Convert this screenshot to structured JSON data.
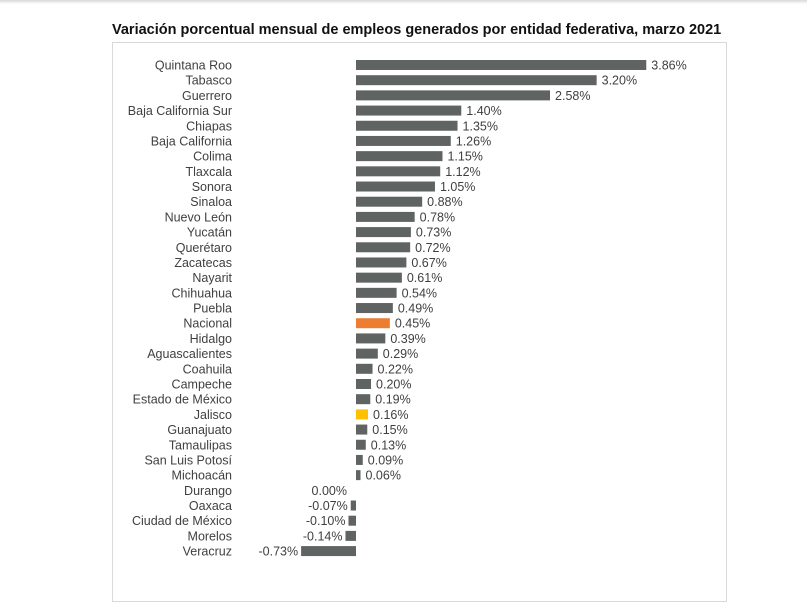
{
  "chart_data": {
    "type": "bar",
    "orientation": "horizontal",
    "title": "Variación porcentual mensual de empleos generados por entidad federativa, marzo 2021",
    "categories": [
      "Quintana Roo",
      "Tabasco",
      "Guerrero",
      "Baja California Sur",
      "Chiapas",
      "Baja California",
      "Colima",
      "Tlaxcala",
      "Sonora",
      "Sinaloa",
      "Nuevo León",
      "Yucatán",
      "Querétaro",
      "Zacatecas",
      "Nayarit",
      "Chihuahua",
      "Puebla",
      "Nacional",
      "Hidalgo",
      "Aguascalientes",
      "Coahuila",
      "Campeche",
      "Estado de México",
      "Jalisco",
      "Guanajuato",
      "Tamaulipas",
      "San Luis Potosí",
      "Michoacán",
      "Durango",
      "Oaxaca",
      "Ciudad de México",
      "Morelos",
      "Veracruz"
    ],
    "values": [
      3.86,
      3.2,
      2.58,
      1.4,
      1.35,
      1.26,
      1.15,
      1.12,
      1.05,
      0.88,
      0.78,
      0.73,
      0.72,
      0.67,
      0.61,
      0.54,
      0.49,
      0.45,
      0.39,
      0.29,
      0.22,
      0.2,
      0.19,
      0.16,
      0.15,
      0.13,
      0.09,
      0.06,
      0.0,
      -0.07,
      -0.1,
      -0.14,
      -0.73
    ],
    "labels": [
      "3.86%",
      "3.20%",
      "2.58%",
      "1.40%",
      "1.35%",
      "1.26%",
      "1.15%",
      "1.12%",
      "1.05%",
      "0.88%",
      "0.78%",
      "0.73%",
      "0.72%",
      "0.67%",
      "0.61%",
      "0.54%",
      "0.49%",
      "0.45%",
      "0.39%",
      "0.29%",
      "0.22%",
      "0.20%",
      "0.19%",
      "0.16%",
      "0.15%",
      "0.13%",
      "0.09%",
      "0.06%",
      "0.00%",
      "-0.07%",
      "-0.10%",
      "-0.14%",
      "-0.73%"
    ],
    "unit": "%",
    "grid": false,
    "legend": "none",
    "colors": {
      "default": "#5f6462",
      "highlight": {
        "Nacional": "#ed7d31",
        "Jalisco": "#ffc000"
      }
    }
  }
}
